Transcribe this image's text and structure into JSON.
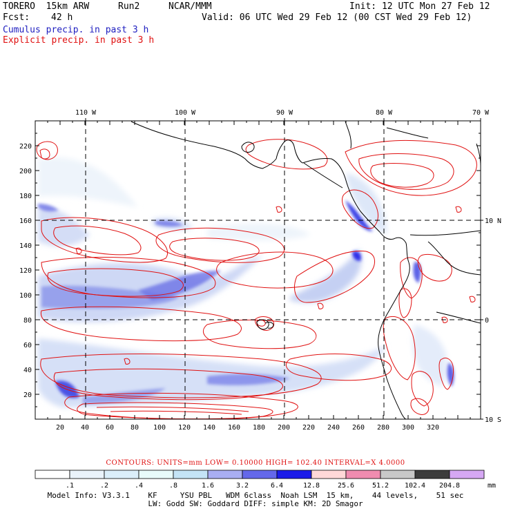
{
  "header": {
    "model": "TORERO  15km ARW",
    "run": "Run2",
    "org": "NCAR/MMM",
    "init": "Init: 12 UTC Mon 27 Feb 12",
    "fcst_label": "Fcst:",
    "fcst_value": "42 h",
    "valid": "Valid: 06 UTC Wed 29 Feb 12 (00 CST Wed 29 Feb 12)",
    "field1": "Cumulus precip. in past 3 h",
    "field2": "Explicit precip. in past 3 h"
  },
  "axes": {
    "top_labels": [
      "110 W",
      "100 W",
      "90 W",
      "80 W",
      "70 W"
    ],
    "left_labels": [
      "220",
      "200",
      "180",
      "160",
      "140",
      "120",
      "100",
      "80",
      "60",
      "40",
      "20"
    ],
    "bottom_labels": [
      "20",
      "40",
      "60",
      "80",
      "100",
      "120",
      "140",
      "160",
      "180",
      "200",
      "220",
      "240",
      "260",
      "280",
      "300",
      "320"
    ],
    "right_labels": [
      "10 N",
      "0",
      "10 S"
    ]
  },
  "contours": {
    "text": "CONTOURS:  UNITS=mm  LOW= 0.10000     HIGH=  102.40     INTERVAL=X  4.0000"
  },
  "colorbar": {
    "labels": [
      ".1",
      ".2",
      ".4",
      ".8",
      "1.6",
      "3.2",
      "6.4",
      "12.8",
      "25.6",
      "51.2",
      "102.4",
      "204.8"
    ],
    "unit": "mm",
    "colors": [
      "#ffffff",
      "#eaf3fb",
      "#dbeefa",
      "#e8fbfa",
      "#c4e4f6",
      "#a9aef2",
      "#6468ea",
      "#1c1ce8",
      "#ffd8d8",
      "#f08cb0",
      "#c8c8c8",
      "#3c3c3c",
      "#d6a8f4"
    ]
  },
  "footer": {
    "line1": "Model Info: V3.3.1    KF     YSU PBL   WDM 6class  Noah LSM  15 km,    44 levels,    51 sec",
    "line2": "LW: Godd SW: Goddard DIFF: simple KM: 2D Smagor"
  }
}
